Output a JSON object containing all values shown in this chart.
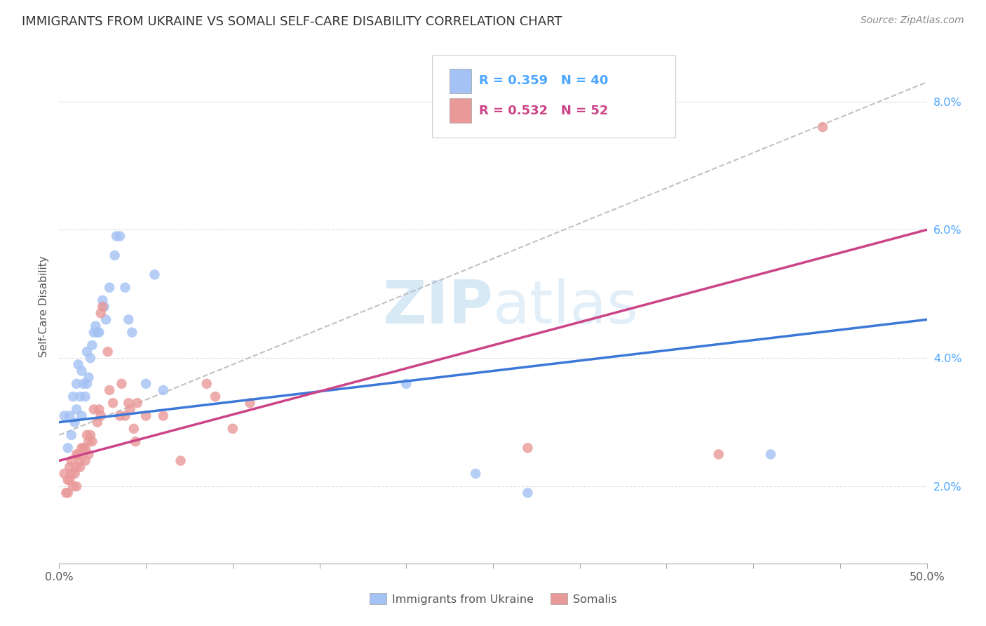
{
  "title": "IMMIGRANTS FROM UKRAINE VS SOMALI SELF-CARE DISABILITY CORRELATION CHART",
  "source": "Source: ZipAtlas.com",
  "ylabel": "Self-Care Disability",
  "xlim": [
    0,
    0.5
  ],
  "ylim": [
    0.008,
    0.088
  ],
  "yticks": [
    0.02,
    0.04,
    0.06,
    0.08
  ],
  "ytick_labels": [
    "2.0%",
    "4.0%",
    "6.0%",
    "8.0%"
  ],
  "xtick_left_label": "0.0%",
  "xtick_right_label": "50.0%",
  "legend_bottom_labels": [
    "Immigrants from Ukraine",
    "Somalis"
  ],
  "ukraine_R": "0.359",
  "ukraine_N": "40",
  "somali_R": "0.532",
  "somali_N": "52",
  "ukraine_color": "#a4c2f4",
  "somali_color": "#ea9999",
  "ukraine_line_color": "#3c78d8",
  "somali_line_color": "#cc4488",
  "trendline_color": "#bbbbbb",
  "ukraine_scatter": [
    [
      0.003,
      0.031
    ],
    [
      0.005,
      0.026
    ],
    [
      0.006,
      0.031
    ],
    [
      0.007,
      0.028
    ],
    [
      0.008,
      0.034
    ],
    [
      0.009,
      0.03
    ],
    [
      0.01,
      0.032
    ],
    [
      0.01,
      0.036
    ],
    [
      0.011,
      0.039
    ],
    [
      0.012,
      0.034
    ],
    [
      0.013,
      0.038
    ],
    [
      0.013,
      0.031
    ],
    [
      0.014,
      0.036
    ],
    [
      0.015,
      0.034
    ],
    [
      0.016,
      0.041
    ],
    [
      0.016,
      0.036
    ],
    [
      0.017,
      0.037
    ],
    [
      0.018,
      0.04
    ],
    [
      0.019,
      0.042
    ],
    [
      0.02,
      0.044
    ],
    [
      0.021,
      0.045
    ],
    [
      0.022,
      0.044
    ],
    [
      0.023,
      0.044
    ],
    [
      0.025,
      0.049
    ],
    [
      0.026,
      0.048
    ],
    [
      0.027,
      0.046
    ],
    [
      0.029,
      0.051
    ],
    [
      0.032,
      0.056
    ],
    [
      0.033,
      0.059
    ],
    [
      0.035,
      0.059
    ],
    [
      0.038,
      0.051
    ],
    [
      0.04,
      0.046
    ],
    [
      0.042,
      0.044
    ],
    [
      0.05,
      0.036
    ],
    [
      0.055,
      0.053
    ],
    [
      0.06,
      0.035
    ],
    [
      0.2,
      0.036
    ],
    [
      0.24,
      0.022
    ],
    [
      0.27,
      0.019
    ],
    [
      0.41,
      0.025
    ]
  ],
  "somali_scatter": [
    [
      0.003,
      0.022
    ],
    [
      0.004,
      0.019
    ],
    [
      0.005,
      0.019
    ],
    [
      0.005,
      0.021
    ],
    [
      0.006,
      0.023
    ],
    [
      0.006,
      0.021
    ],
    [
      0.007,
      0.024
    ],
    [
      0.007,
      0.022
    ],
    [
      0.008,
      0.02
    ],
    [
      0.009,
      0.022
    ],
    [
      0.01,
      0.023
    ],
    [
      0.01,
      0.025
    ],
    [
      0.01,
      0.02
    ],
    [
      0.011,
      0.025
    ],
    [
      0.012,
      0.023
    ],
    [
      0.012,
      0.024
    ],
    [
      0.013,
      0.026
    ],
    [
      0.014,
      0.026
    ],
    [
      0.015,
      0.026
    ],
    [
      0.015,
      0.024
    ],
    [
      0.016,
      0.028
    ],
    [
      0.017,
      0.025
    ],
    [
      0.017,
      0.027
    ],
    [
      0.018,
      0.028
    ],
    [
      0.019,
      0.027
    ],
    [
      0.02,
      0.032
    ],
    [
      0.022,
      0.03
    ],
    [
      0.023,
      0.032
    ],
    [
      0.024,
      0.031
    ],
    [
      0.024,
      0.047
    ],
    [
      0.025,
      0.048
    ],
    [
      0.028,
      0.041
    ],
    [
      0.029,
      0.035
    ],
    [
      0.031,
      0.033
    ],
    [
      0.035,
      0.031
    ],
    [
      0.036,
      0.036
    ],
    [
      0.038,
      0.031
    ],
    [
      0.04,
      0.033
    ],
    [
      0.041,
      0.032
    ],
    [
      0.043,
      0.029
    ],
    [
      0.044,
      0.027
    ],
    [
      0.045,
      0.033
    ],
    [
      0.05,
      0.031
    ],
    [
      0.06,
      0.031
    ],
    [
      0.07,
      0.024
    ],
    [
      0.085,
      0.036
    ],
    [
      0.09,
      0.034
    ],
    [
      0.1,
      0.029
    ],
    [
      0.11,
      0.033
    ],
    [
      0.27,
      0.026
    ],
    [
      0.38,
      0.025
    ],
    [
      0.44,
      0.076
    ]
  ],
  "watermark_zip": "ZIP",
  "watermark_atlas": "atlas",
  "background_color": "#ffffff",
  "grid_color": "#dddddd",
  "num_xticks": 10
}
